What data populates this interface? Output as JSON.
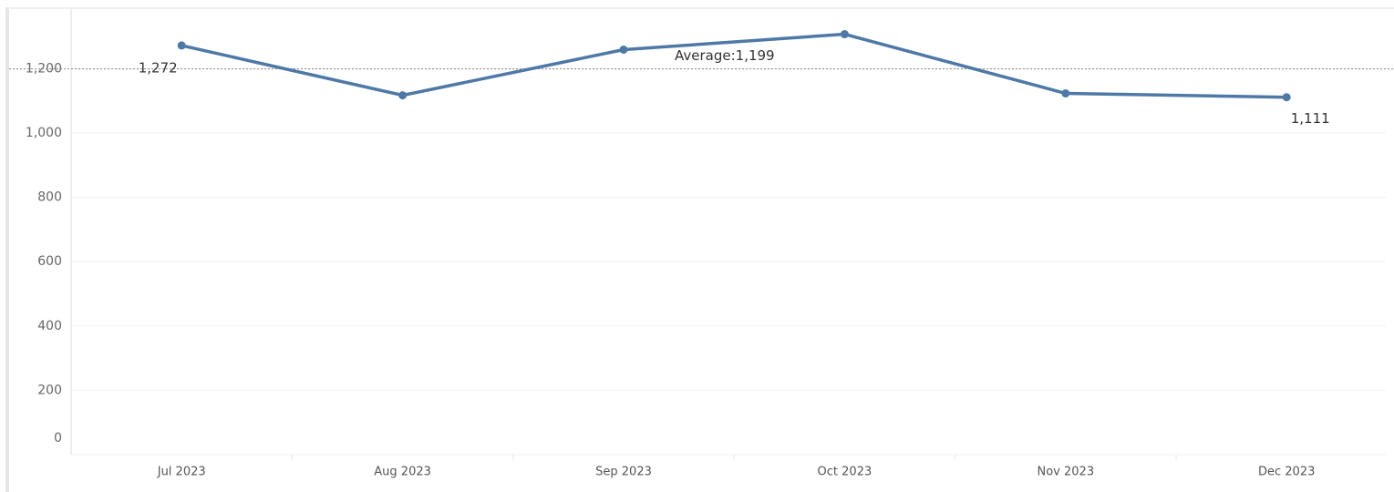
{
  "chart_data": {
    "type": "line",
    "categories": [
      "Jul 2023",
      "Aug 2023",
      "Sep 2023",
      "Oct 2023",
      "Nov 2023",
      "Dec 2023"
    ],
    "series": [
      {
        "color": "#4e79a7",
        "values": [
          1272,
          1117,
          1259,
          1307,
          1123,
          1111
        ],
        "value_labels": [
          "1,272",
          null,
          null,
          null,
          null,
          "1,111"
        ]
      }
    ],
    "average": 1199,
    "average_label": "Average:1,199",
    "ylim": [
      0,
      1385
    ],
    "yticks": [
      0,
      200,
      400,
      600,
      800,
      {
        "value": 1000,
        "label": "1,000"
      },
      {
        "value": 1200,
        "label": "1,200"
      }
    ],
    "grid": true
  }
}
